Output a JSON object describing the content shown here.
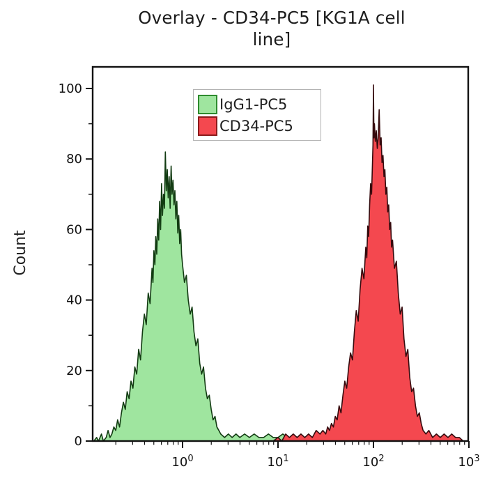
{
  "title": {
    "line1": "Overlay - CD34-PC5 [KG1A cell",
    "line2": "line]",
    "full": "Overlay - CD34-PC5 [KG1A cell line]"
  },
  "legend": {
    "items": [
      {
        "label": "IgG1-PC5",
        "fill": "#9fe59f",
        "border": "#2e8b2e"
      },
      {
        "label": "CD34-PC5",
        "fill": "#f4484f",
        "border": "#8b1b1b"
      }
    ]
  },
  "chart_data": {
    "type": "area",
    "subtype": "flow-cytometry-histogram-overlay",
    "title": "Overlay - CD34-PC5 [KG1A cell line]",
    "xlabel": "",
    "ylabel": "Count",
    "x_scale": "log10",
    "xlim_log": [
      -0.94,
      3.0
    ],
    "ylim": [
      0,
      106
    ],
    "y_ticks": [
      0,
      20,
      40,
      60,
      80,
      100
    ],
    "y_minor_ticks": [
      10,
      30,
      50,
      70,
      90
    ],
    "x_ticks_exponents": [
      0,
      1,
      2,
      3
    ],
    "x_tick_labels": [
      "10⁰",
      "10¹",
      "10²",
      "10³"
    ],
    "grid": false,
    "legend_position": "upper-left-inside",
    "series": [
      {
        "name": "IgG1-PC5",
        "fill": "#9fe59f",
        "stroke": "#123b12",
        "peak_x": 0.66,
        "peak_count": 82,
        "points_log_count": [
          [
            -0.93,
            0
          ],
          [
            -0.9,
            1
          ],
          [
            -0.88,
            0
          ],
          [
            -0.85,
            2
          ],
          [
            -0.83,
            0
          ],
          [
            -0.8,
            1
          ],
          [
            -0.78,
            3
          ],
          [
            -0.76,
            1
          ],
          [
            -0.74,
            2
          ],
          [
            -0.72,
            4
          ],
          [
            -0.7,
            3
          ],
          [
            -0.68,
            6
          ],
          [
            -0.66,
            4
          ],
          [
            -0.64,
            8
          ],
          [
            -0.62,
            11
          ],
          [
            -0.6,
            9
          ],
          [
            -0.58,
            14
          ],
          [
            -0.56,
            12
          ],
          [
            -0.54,
            17
          ],
          [
            -0.52,
            15
          ],
          [
            -0.5,
            21
          ],
          [
            -0.48,
            19
          ],
          [
            -0.46,
            26
          ],
          [
            -0.44,
            23
          ],
          [
            -0.42,
            31
          ],
          [
            -0.4,
            36
          ],
          [
            -0.38,
            33
          ],
          [
            -0.36,
            42
          ],
          [
            -0.34,
            39
          ],
          [
            -0.32,
            49
          ],
          [
            -0.31,
            45
          ],
          [
            -0.3,
            54
          ],
          [
            -0.29,
            50
          ],
          [
            -0.28,
            58
          ],
          [
            -0.27,
            53
          ],
          [
            -0.26,
            63
          ],
          [
            -0.25,
            57
          ],
          [
            -0.24,
            68
          ],
          [
            -0.23,
            60
          ],
          [
            -0.22,
            73
          ],
          [
            -0.21,
            64
          ],
          [
            -0.2,
            70
          ],
          [
            -0.19,
            66
          ],
          [
            -0.18,
            82
          ],
          [
            -0.17,
            71
          ],
          [
            -0.16,
            77
          ],
          [
            -0.15,
            69
          ],
          [
            -0.14,
            75
          ],
          [
            -0.13,
            66
          ],
          [
            -0.12,
            78
          ],
          [
            -0.11,
            70
          ],
          [
            -0.1,
            74
          ],
          [
            -0.09,
            67
          ],
          [
            -0.08,
            71
          ],
          [
            -0.07,
            63
          ],
          [
            -0.06,
            68
          ],
          [
            -0.05,
            59
          ],
          [
            -0.04,
            64
          ],
          [
            -0.03,
            56
          ],
          [
            -0.02,
            60
          ],
          [
            -0.01,
            53
          ],
          [
            0.0,
            50
          ],
          [
            0.02,
            45
          ],
          [
            0.04,
            47
          ],
          [
            0.06,
            40
          ],
          [
            0.08,
            36
          ],
          [
            0.1,
            38
          ],
          [
            0.12,
            31
          ],
          [
            0.14,
            27
          ],
          [
            0.16,
            29
          ],
          [
            0.18,
            22
          ],
          [
            0.2,
            19
          ],
          [
            0.22,
            21
          ],
          [
            0.24,
            15
          ],
          [
            0.26,
            12
          ],
          [
            0.28,
            13
          ],
          [
            0.3,
            9
          ],
          [
            0.32,
            6
          ],
          [
            0.34,
            7
          ],
          [
            0.36,
            4
          ],
          [
            0.38,
            3
          ],
          [
            0.4,
            2
          ],
          [
            0.44,
            1
          ],
          [
            0.48,
            2
          ],
          [
            0.52,
            1
          ],
          [
            0.56,
            2
          ],
          [
            0.6,
            1
          ],
          [
            0.65,
            2
          ],
          [
            0.7,
            1
          ],
          [
            0.75,
            2
          ],
          [
            0.8,
            1
          ],
          [
            0.85,
            1
          ],
          [
            0.9,
            2
          ],
          [
            0.95,
            1
          ],
          [
            1.0,
            1
          ],
          [
            1.05,
            2
          ],
          [
            1.1,
            1
          ],
          [
            1.15,
            1
          ],
          [
            1.2,
            0
          ]
        ]
      },
      {
        "name": "CD34-PC5",
        "fill": "#f4484f",
        "stroke": "#360b0e",
        "peak_x": 100,
        "peak_count": 101,
        "points_log_count": [
          [
            0.95,
            0
          ],
          [
            1.0,
            1
          ],
          [
            1.04,
            0
          ],
          [
            1.08,
            2
          ],
          [
            1.12,
            1
          ],
          [
            1.16,
            2
          ],
          [
            1.2,
            1
          ],
          [
            1.24,
            2
          ],
          [
            1.28,
            1
          ],
          [
            1.32,
            2
          ],
          [
            1.36,
            1
          ],
          [
            1.4,
            3
          ],
          [
            1.44,
            2
          ],
          [
            1.47,
            3
          ],
          [
            1.5,
            2
          ],
          [
            1.52,
            4
          ],
          [
            1.54,
            3
          ],
          [
            1.56,
            5
          ],
          [
            1.58,
            4
          ],
          [
            1.6,
            7
          ],
          [
            1.62,
            6
          ],
          [
            1.64,
            10
          ],
          [
            1.66,
            8
          ],
          [
            1.68,
            13
          ],
          [
            1.7,
            17
          ],
          [
            1.72,
            15
          ],
          [
            1.74,
            21
          ],
          [
            1.76,
            25
          ],
          [
            1.78,
            23
          ],
          [
            1.8,
            31
          ],
          [
            1.82,
            37
          ],
          [
            1.84,
            34
          ],
          [
            1.86,
            43
          ],
          [
            1.88,
            49
          ],
          [
            1.9,
            46
          ],
          [
            1.92,
            55
          ],
          [
            1.93,
            52
          ],
          [
            1.94,
            61
          ],
          [
            1.95,
            58
          ],
          [
            1.96,
            67
          ],
          [
            1.97,
            73
          ],
          [
            1.98,
            70
          ],
          [
            1.99,
            79
          ],
          [
            1.995,
            84
          ],
          [
            2.0,
            101
          ],
          [
            2.005,
            86
          ],
          [
            2.01,
            90
          ],
          [
            2.02,
            85
          ],
          [
            2.03,
            88
          ],
          [
            2.04,
            83
          ],
          [
            2.05,
            86
          ],
          [
            2.06,
            94
          ],
          [
            2.07,
            84
          ],
          [
            2.08,
            86
          ],
          [
            2.09,
            79
          ],
          [
            2.1,
            81
          ],
          [
            2.11,
            75
          ],
          [
            2.12,
            77
          ],
          [
            2.13,
            70
          ],
          [
            2.14,
            72
          ],
          [
            2.15,
            65
          ],
          [
            2.16,
            67
          ],
          [
            2.17,
            60
          ],
          [
            2.18,
            62
          ],
          [
            2.19,
            55
          ],
          [
            2.2,
            57
          ],
          [
            2.22,
            49
          ],
          [
            2.24,
            51
          ],
          [
            2.26,
            42
          ],
          [
            2.28,
            36
          ],
          [
            2.3,
            38
          ],
          [
            2.32,
            29
          ],
          [
            2.34,
            24
          ],
          [
            2.36,
            26
          ],
          [
            2.38,
            18
          ],
          [
            2.4,
            14
          ],
          [
            2.42,
            15
          ],
          [
            2.44,
            10
          ],
          [
            2.46,
            7
          ],
          [
            2.48,
            8
          ],
          [
            2.5,
            5
          ],
          [
            2.52,
            3
          ],
          [
            2.55,
            2
          ],
          [
            2.58,
            3
          ],
          [
            2.62,
            1
          ],
          [
            2.66,
            2
          ],
          [
            2.7,
            1
          ],
          [
            2.74,
            2
          ],
          [
            2.78,
            1
          ],
          [
            2.82,
            2
          ],
          [
            2.86,
            1
          ],
          [
            2.9,
            1
          ],
          [
            2.94,
            0
          ]
        ]
      }
    ]
  }
}
